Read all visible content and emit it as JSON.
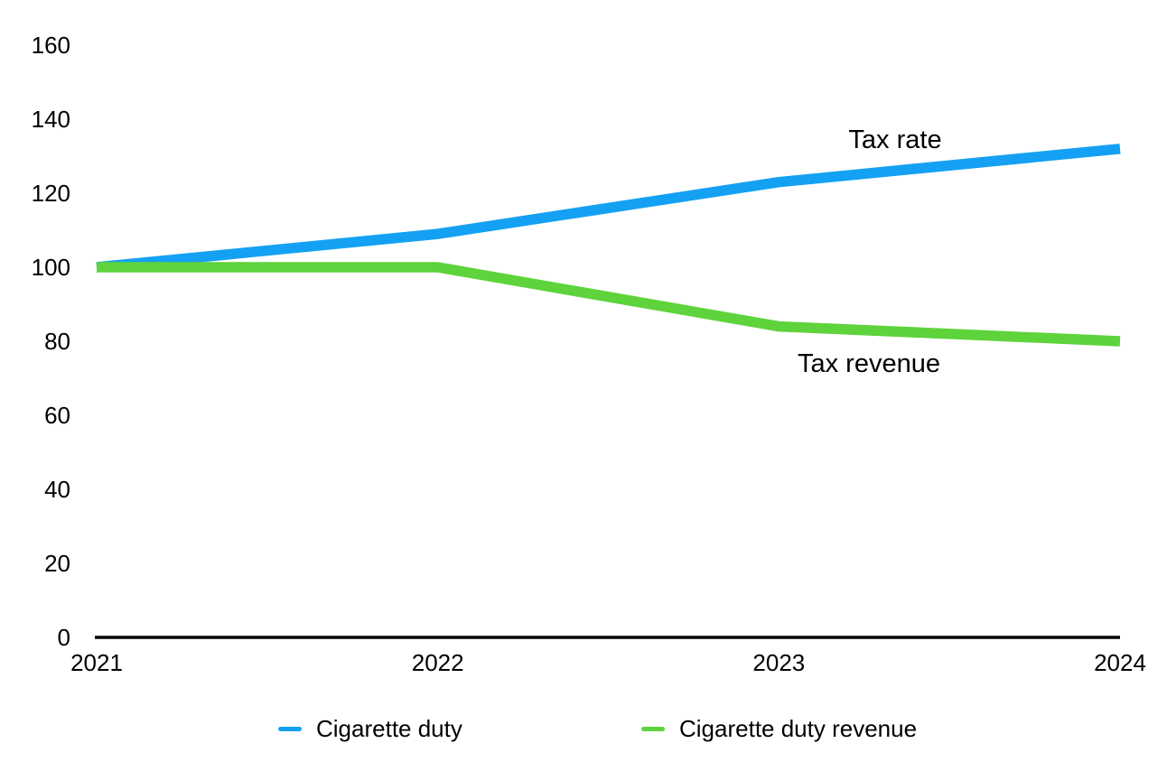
{
  "chart_data": {
    "type": "line",
    "x_labels": [
      "2021",
      "2022",
      "2023",
      "2024"
    ],
    "yticks": [
      0,
      20,
      40,
      60,
      80,
      100,
      120,
      140,
      160
    ],
    "ylim": [
      0,
      160
    ],
    "grid": false,
    "legend_position": "bottom",
    "axis_color": "#000000",
    "text_color": "#000000",
    "series": [
      {
        "name": "Cigarette duty",
        "color": "#14A1F3",
        "values": [
          100,
          109,
          123,
          132
        ]
      },
      {
        "name": "Cigarette duty revenue",
        "color": "#5ED33B",
        "values": [
          100,
          100,
          84,
          80
        ]
      }
    ],
    "annotations": [
      {
        "label": "Tax rate",
        "series": "Cigarette duty"
      },
      {
        "label": "Tax revenue",
        "series": "Cigarette duty revenue"
      }
    ]
  }
}
